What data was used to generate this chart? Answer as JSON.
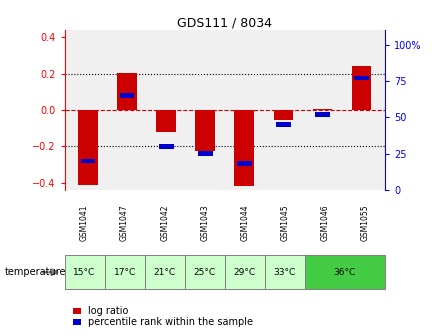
{
  "title": "GDS111 / 8034",
  "samples": [
    "GSM1041",
    "GSM1047",
    "GSM1042",
    "GSM1043",
    "GSM1044",
    "GSM1045",
    "GSM1046",
    "GSM1055"
  ],
  "temperatures": [
    "15°C",
    "17°C",
    "21°C",
    "25°C",
    "29°C",
    "33°C",
    "36°C",
    "36°C"
  ],
  "temp_groups": [
    1,
    1,
    1,
    1,
    1,
    1,
    2,
    2
  ],
  "log_ratios": [
    -0.415,
    0.205,
    -0.12,
    -0.225,
    -0.42,
    -0.055,
    0.003,
    0.245
  ],
  "percentile_ranks": [
    20,
    65,
    30,
    25,
    18,
    45,
    52,
    77
  ],
  "ylim_left": [
    -0.44,
    0.44
  ],
  "ylim_right": [
    0,
    110
  ],
  "yticks_left": [
    -0.4,
    -0.2,
    0.0,
    0.2,
    0.4
  ],
  "yticks_right": [
    0,
    25,
    50,
    75,
    100
  ],
  "bar_color": "#cc0000",
  "percentile_color": "#0000cc",
  "grid_color": "#000000",
  "zero_line_color": "#cc0000",
  "bg_color": "#ffffff",
  "plot_bg": "#f0f0f0",
  "temp_bg_normal": "#ccffcc",
  "temp_bg_highlight": "#44cc44",
  "sample_bg": "#cccccc",
  "bar_width": 0.5,
  "legend_log_label": "log ratio",
  "legend_pct_label": "percentile rank within the sample",
  "temp_label": "temperature"
}
